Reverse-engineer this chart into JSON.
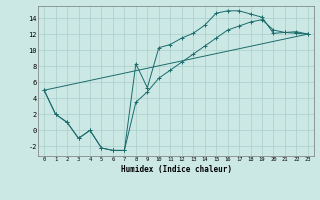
{
  "xlabel": "Humidex (Indice chaleur)",
  "bg_color": "#cce8e5",
  "grid_color": "#aacfcc",
  "line_color": "#1a6b6b",
  "xlim": [
    -0.5,
    23.5
  ],
  "ylim": [
    -3.2,
    15.5
  ],
  "yticks": [
    -2,
    0,
    2,
    4,
    6,
    8,
    10,
    12,
    14
  ],
  "xticks": [
    0,
    1,
    2,
    3,
    4,
    5,
    6,
    7,
    8,
    9,
    10,
    11,
    12,
    13,
    14,
    15,
    16,
    17,
    18,
    19,
    20,
    21,
    22,
    23
  ],
  "line1_x": [
    0,
    1,
    2,
    3,
    4,
    5,
    6,
    7,
    8,
    9,
    10,
    11,
    12,
    13,
    14,
    15,
    16,
    17,
    18,
    19,
    20,
    21,
    22,
    23
  ],
  "line1_y": [
    5,
    2,
    1,
    -1,
    0,
    -2.2,
    -2.5,
    -2.5,
    8.3,
    5.3,
    10.3,
    10.7,
    11.5,
    12.1,
    13.1,
    14.6,
    14.9,
    14.9,
    14.5,
    14.1,
    12.1,
    12.2,
    12.3,
    12.0
  ],
  "line2_x": [
    0,
    1,
    2,
    3,
    4,
    5,
    6,
    7,
    8,
    9,
    10,
    11,
    12,
    13,
    14,
    15,
    16,
    17,
    18,
    19,
    20,
    21,
    22,
    23
  ],
  "line2_y": [
    5,
    2,
    1,
    -1,
    0,
    -2.2,
    -2.5,
    -2.5,
    3.5,
    4.8,
    6.5,
    7.5,
    8.5,
    9.5,
    10.5,
    11.5,
    12.5,
    13.0,
    13.5,
    13.8,
    12.5,
    12.2,
    12.1,
    12.0
  ],
  "line3_x": [
    0,
    23
  ],
  "line3_y": [
    5,
    12.0
  ]
}
